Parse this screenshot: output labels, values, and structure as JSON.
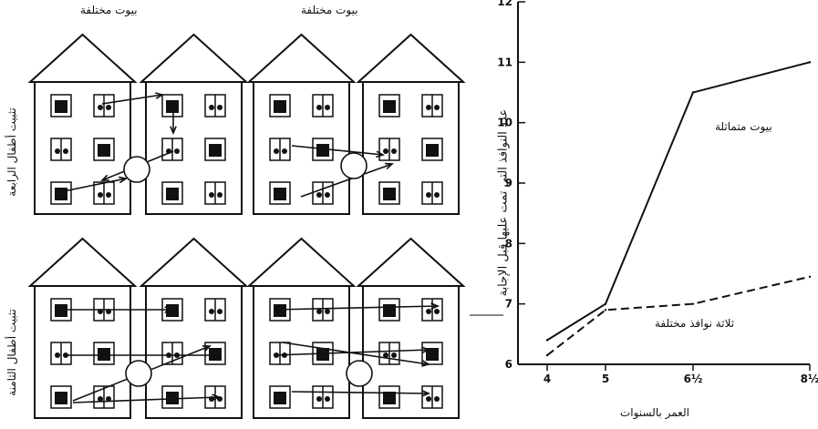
{
  "panels": {
    "top_row": {
      "left_title": "بيوت مختلفة",
      "right_title": "بيوت مختلفة",
      "row_label": "تثبيت أطفال الرابعة"
    },
    "bottom_row": {
      "row_label": "تثبيت أطفال الثامنة"
    }
  },
  "chart_data": {
    "type": "line",
    "xlabel": "العمر بالسنوات",
    "ylabel": "عدد النوافذ التي تمت عليها قبل الإجابة",
    "x_tick_labels": [
      "4",
      "5",
      "6½",
      "8½"
    ],
    "x": [
      4,
      5,
      6.5,
      8.5
    ],
    "xlim": [
      3.5,
      8.5
    ],
    "y_ticks": [
      6,
      7,
      8,
      9,
      10,
      11,
      12
    ],
    "ylim": [
      6,
      12
    ],
    "series": [
      {
        "name": "بيوت متماثلة",
        "style": "solid",
        "values": [
          6.4,
          7.0,
          10.5,
          11.0
        ]
      },
      {
        "name": "ثلاثة نوافذ مختلفة",
        "style": "dashed",
        "values": [
          6.15,
          6.9,
          7.0,
          7.45
        ]
      }
    ],
    "grid": false,
    "line_color": "#111111"
  }
}
